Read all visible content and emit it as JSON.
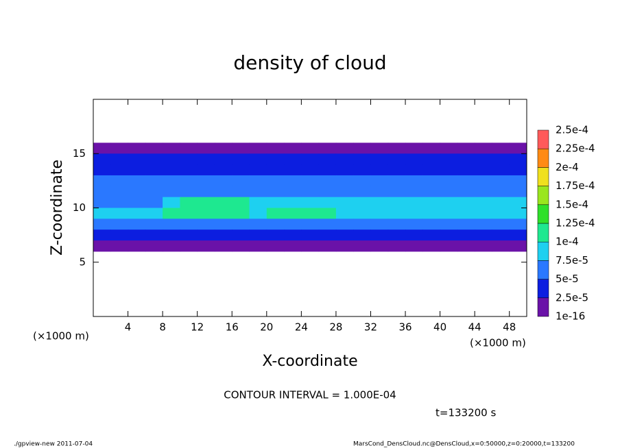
{
  "chart_data": {
    "type": "heatmap",
    "title": "density of cloud",
    "xlabel": "X-coordinate",
    "ylabel": "Z-coordinate",
    "xunit": "(×1000 m)",
    "contour_note": "CONTOUR INTERVAL = 1.000E-04",
    "time_note": "t=133200 s",
    "footer_left": "./gpview-new  2011-07-04",
    "footer_right": "MarsCond_DensCloud.nc@DensCloud,x=0:50000,z=0:20000,t=133200",
    "xlim": [
      0,
      50
    ],
    "ylim": [
      0,
      20
    ],
    "xticks": [
      4,
      8,
      12,
      16,
      20,
      24,
      28,
      32,
      36,
      40,
      44,
      48
    ],
    "yticks": [
      5,
      10,
      15
    ],
    "x": [
      0,
      2,
      4,
      6,
      8,
      10,
      12,
      14,
      16,
      18,
      20,
      22,
      24,
      26,
      28,
      30,
      32,
      34,
      36,
      38,
      40,
      42,
      44,
      46,
      48,
      50
    ],
    "y": [
      16,
      15,
      14,
      13,
      12,
      11,
      10,
      9,
      8,
      7,
      6
    ],
    "values": [
      [
        1e-05,
        1e-05,
        1e-05,
        1e-05,
        1e-05,
        1e-05,
        1e-05,
        1e-05,
        1e-05,
        1e-05,
        1e-05,
        1e-05,
        1e-05,
        1e-05,
        1e-05,
        1e-05,
        1e-05,
        1e-05,
        1e-05,
        1e-05,
        1e-05,
        1e-05,
        1e-05,
        1e-05,
        1e-05
      ],
      [
        3e-05,
        3e-05,
        3e-05,
        3e-05,
        3e-05,
        3e-05,
        3e-05,
        3e-05,
        3e-05,
        3e-05,
        3e-05,
        3e-05,
        3e-05,
        3e-05,
        3e-05,
        3e-05,
        3e-05,
        3e-05,
        3e-05,
        3e-05,
        3e-05,
        3e-05,
        3e-05,
        3e-05,
        3e-05
      ],
      [
        4e-05,
        4e-05,
        4e-05,
        4e-05,
        4e-05,
        4e-05,
        4e-05,
        4e-05,
        4e-05,
        4e-05,
        4e-05,
        4e-05,
        4e-05,
        4e-05,
        4e-05,
        4e-05,
        4e-05,
        4e-05,
        4e-05,
        4e-05,
        4e-05,
        4e-05,
        4e-05,
        4e-05,
        3e-05
      ],
      [
        5e-05,
        5e-05,
        5e-05,
        5e-05,
        5e-05,
        5e-05,
        5e-05,
        5e-05,
        5e-05,
        5e-05,
        5e-05,
        5e-05,
        6e-05,
        6e-05,
        6e-05,
        6e-05,
        6e-05,
        6e-05,
        6e-05,
        6e-05,
        6e-05,
        5e-05,
        5e-05,
        5e-05,
        5e-05
      ],
      [
        5e-05,
        5e-05,
        5e-05,
        5e-05,
        6e-05,
        6e-05,
        6e-05,
        6e-05,
        6e-05,
        6e-05,
        7e-05,
        7e-05,
        7e-05,
        7e-05,
        7e-05,
        7e-05,
        7e-05,
        7e-05,
        7e-05,
        7e-05,
        6e-05,
        6e-05,
        6e-05,
        6e-05,
        6e-05
      ],
      [
        6e-05,
        6e-05,
        6e-05,
        6e-05,
        9e-05,
        0.00011,
        0.00011,
        0.00011,
        0.00011,
        9e-05,
        9e-05,
        9e-05,
        9e-05,
        8e-05,
        8e-05,
        8e-05,
        8e-05,
        8e-05,
        8e-05,
        9e-05,
        9e-05,
        9e-05,
        8e-05,
        8e-05,
        8e-05
      ],
      [
        8e-05,
        8e-05,
        8e-05,
        8e-05,
        0.000105,
        0.00011,
        0.00011,
        0.00011,
        0.00011,
        9e-05,
        0.000102,
        0.000102,
        0.000102,
        0.000102,
        9e-05,
        9e-05,
        9.5e-05,
        9.5e-05,
        9.5e-05,
        9.5e-05,
        9.5e-05,
        9.5e-05,
        9e-05,
        9e-05,
        8e-05
      ],
      [
        6e-05,
        7e-05,
        7e-05,
        7e-05,
        7e-05,
        7e-05,
        7e-05,
        7e-05,
        7e-05,
        7e-05,
        7e-05,
        7e-05,
        7e-05,
        7e-05,
        7e-05,
        7e-05,
        7e-05,
        7e-05,
        7e-05,
        7e-05,
        7e-05,
        7e-05,
        7e-05,
        7e-05,
        6e-05
      ],
      [
        4e-05,
        4e-05,
        4e-05,
        4e-05,
        4e-05,
        4e-05,
        4e-05,
        4e-05,
        4e-05,
        4e-05,
        4e-05,
        4e-05,
        4e-05,
        4e-05,
        4e-05,
        4e-05,
        4e-05,
        4e-05,
        4e-05,
        4e-05,
        4e-05,
        4e-05,
        4e-05,
        4e-05,
        4e-05
      ],
      [
        1e-05,
        1e-05,
        1e-05,
        1e-05,
        1e-05,
        1e-05,
        1e-05,
        1e-05,
        1e-05,
        1e-05,
        1e-05,
        1e-05,
        1e-05,
        1e-05,
        1e-05,
        1e-05,
        1e-05,
        1e-05,
        1e-05,
        1e-05,
        1e-05,
        1e-05,
        1e-05,
        1e-05,
        1e-05
      ]
    ],
    "cticks": [
      1e-16,
      {
        "value": 2.5e-05,
        "label": "2.5e-5"
      },
      {
        "value": 5e-05,
        "label": "5e-5"
      },
      {
        "value": 7.5e-05,
        "label": "7.5e-5"
      },
      {
        "value": 0.0001,
        "label": "1e-4"
      },
      {
        "value": 0.000125,
        "label": "1.25e-4"
      },
      {
        "value": 0.00015,
        "label": "1.5e-4"
      },
      {
        "value": 0.000175,
        "label": "1.75e-4"
      },
      {
        "value": 0.0002,
        "label": "2e-4"
      },
      {
        "value": 0.000225,
        "label": "2.25e-4"
      },
      {
        "value": 0.00025,
        "label": "2.5e-4"
      }
    ],
    "colors": [
      "#6a12a8",
      "#0c1ee0",
      "#2a78ff",
      "#1ed0f0",
      "#1ee890",
      "#2fe02a",
      "#9ae61e",
      "#f0e01e",
      "#ff8a14",
      "#ff5a5a"
    ]
  }
}
